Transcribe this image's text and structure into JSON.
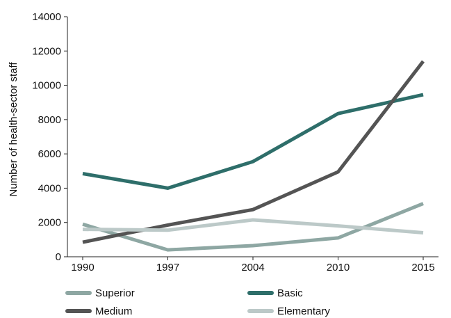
{
  "chart_data": {
    "type": "line",
    "title": "",
    "xlabel": "",
    "ylabel": "Number of health-sector staff",
    "categories": [
      "1990",
      "1997",
      "2004",
      "2010",
      "2015"
    ],
    "ylim": [
      0,
      14000
    ],
    "yticks": [
      0,
      2000,
      4000,
      6000,
      8000,
      10000,
      12000,
      14000
    ],
    "ytick_labels": [
      "0",
      "2000",
      "4000",
      "6000",
      "8000",
      "10000",
      "12000",
      "14000"
    ],
    "grid": false,
    "legend_position": "bottom",
    "series": [
      {
        "name": "Superior",
        "color": "#8ea7a3",
        "values": [
          1900,
          400,
          650,
          1100,
          3100
        ]
      },
      {
        "name": "Basic",
        "color": "#2e6e6a",
        "values": [
          4850,
          4000,
          5550,
          8350,
          9450
        ]
      },
      {
        "name": "Medium",
        "color": "#545454",
        "values": [
          850,
          1850,
          2750,
          4950,
          11400
        ]
      },
      {
        "name": "Elementary",
        "color": "#bcc9c8",
        "values": [
          1600,
          1550,
          2150,
          1800,
          1400
        ]
      }
    ]
  }
}
